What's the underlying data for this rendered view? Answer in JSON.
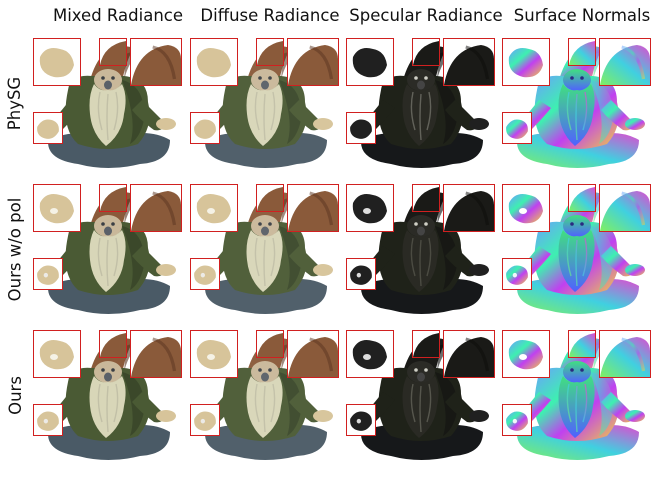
{
  "columns": [
    {
      "label": "Mixed Radiance",
      "key": "mixed"
    },
    {
      "label": "Diffuse Radiance",
      "key": "diffuse"
    },
    {
      "label": "Specular Radiance",
      "key": "specular"
    },
    {
      "label": "Surface Normals",
      "key": "normals"
    }
  ],
  "rows": [
    {
      "label": "PhySG"
    },
    {
      "label": "Ours w/o pol"
    },
    {
      "label": "Ours"
    }
  ],
  "colors": {
    "inset_border": "#d12020",
    "robe": "#4a5a34",
    "beard": "#d8d6b8",
    "hat": "#8a5a3a",
    "pants": "#4a5a66",
    "specular_base": "#1a1a18"
  }
}
